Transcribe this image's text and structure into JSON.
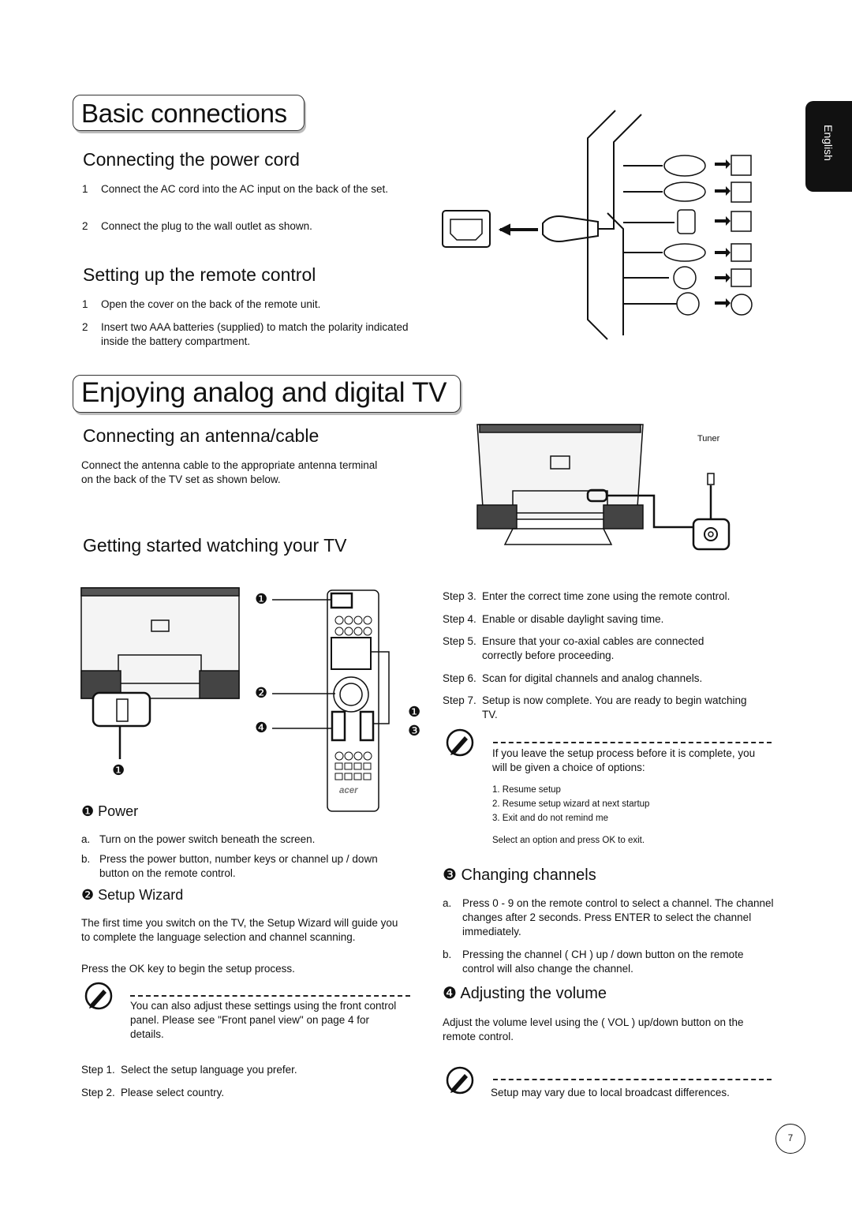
{
  "side_tab": "English",
  "basic_connections": {
    "title": "Basic connections",
    "power_cord": {
      "title": "Connecting the power cord",
      "items": [
        {
          "number": "1",
          "text": "Connect the AC cord into the AC input on the back of the set."
        },
        {
          "number": "2",
          "text": "Connect the plug to the wall outlet as shown."
        }
      ]
    },
    "remote": {
      "title": "Setting up the remote control",
      "items": [
        {
          "number": "1",
          "text": "Open the cover on the back of the remote unit."
        },
        {
          "number": "2",
          "text": "Insert two AAA batteries (supplied) to match the polarity indicated inside the battery compartment."
        }
      ]
    }
  },
  "enjoying_tv": {
    "title": "Enjoying analog and digital TV",
    "antenna": {
      "title": "Connecting an antenna/cable",
      "text": "Connect the antenna cable to the appropriate antenna terminal on the back of the TV set as shown below.",
      "diagram_label": "Tuner"
    },
    "getting_started": {
      "title": "Getting started watching your TV",
      "diagram": {
        "callouts": [
          "❶",
          "❷",
          "❹",
          "❶",
          "❸",
          "❶"
        ],
        "remote_logo": "acer"
      }
    },
    "power": {
      "marker": "❶",
      "title": "Power",
      "items": [
        {
          "letter": "a.",
          "text": "Turn on the power switch beneath the screen."
        },
        {
          "letter": "b.",
          "text": "Press the power button, number keys or channel up / down button on the remote control."
        }
      ]
    },
    "setup_wizard": {
      "marker": "❷",
      "title": "Setup Wizard",
      "paragraphs": [
        "The first time you switch on the TV, the Setup Wizard will guide you to complete the language selection and channel scanning.",
        "Press the OK key to begin the setup process."
      ],
      "note": "You can also adjust these settings using the front control panel. Please see \"Front panel view\" on page 4 for details.",
      "steps": [
        {
          "label": "Step 1.",
          "text": "Select the setup language you prefer."
        },
        {
          "label": "Step 2.",
          "text": "Please select country."
        },
        {
          "label": "Step 3.",
          "text": "Enter the correct time zone using the remote control."
        },
        {
          "label": "Step 4.",
          "text": "Enable or disable daylight saving time."
        },
        {
          "label": "Step 5.",
          "text": "Ensure that your co-axial cables are connected correctly before proceeding."
        },
        {
          "label": "Step 6.",
          "text": "Scan for digital channels and analog channels."
        },
        {
          "label": "Step 7.",
          "text": "Setup is now complete. You are ready to begin watching TV."
        }
      ],
      "exit_note": {
        "text": "If you leave the setup process before it is complete, you will be given a choice of options:",
        "options": [
          "1. Resume setup",
          "2. Resume setup wizard at next startup",
          "3. Exit and do not remind me"
        ],
        "footer": "Select an option and press OK to exit."
      }
    },
    "channels": {
      "marker": "❸",
      "title": "Changing channels",
      "items": [
        {
          "letter": "a.",
          "text": "Press 0 - 9 on the remote control to select a channel. The channel changes after 2 seconds. Press ENTER to select the channel immediately."
        },
        {
          "letter": "b.",
          "text": "Pressing the channel ( CH ) up / down button on the remote control will also change the channel."
        }
      ]
    },
    "volume": {
      "marker": "❹",
      "title": "Adjusting the volume",
      "text": "Adjust the volume level using the ( VOL ) up/down button on the remote control.",
      "note": "Setup may vary due to local broadcast differences."
    }
  },
  "page_number": "7"
}
